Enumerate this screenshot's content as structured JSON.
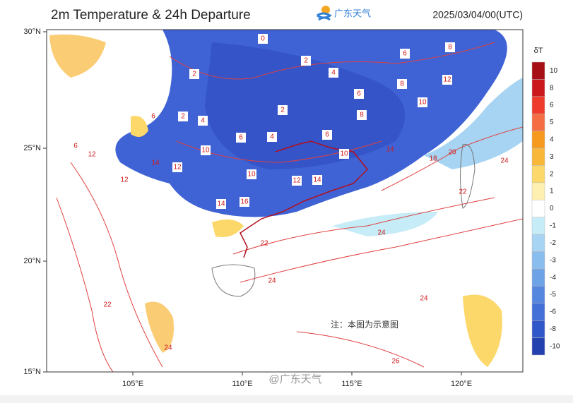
{
  "header": {
    "title": "2m Temperature & 24h Departure",
    "logo_text": "广东天气",
    "timestamp": "2025/03/04/00(UTC)"
  },
  "map": {
    "lat_labels": [
      "30°N",
      "25°N",
      "20°N",
      "15°N"
    ],
    "lon_labels": [
      "105°E",
      "110°E",
      "115°E",
      "120°E"
    ],
    "note": "注：本图为示意图",
    "watermark": "@广东天气",
    "contour_labels": [
      0,
      2,
      4,
      6,
      8,
      2,
      8,
      12,
      2,
      6,
      8,
      10,
      2,
      4,
      6,
      4,
      6,
      10,
      12,
      10,
      12,
      14,
      14,
      16,
      10,
      14,
      20,
      18,
      12,
      14,
      12,
      6,
      6,
      22,
      24,
      24,
      24,
      26,
      22,
      24,
      22,
      24
    ]
  },
  "colorbar": {
    "title": "δT",
    "levels": [
      {
        "value": 10,
        "color": "#a50f15"
      },
      {
        "value": 8,
        "color": "#cb181d"
      },
      {
        "value": 6,
        "color": "#ef3b2c"
      },
      {
        "value": 5,
        "color": "#f46d43"
      },
      {
        "value": 4,
        "color": "#f59a1e"
      },
      {
        "value": 3,
        "color": "#f8b739"
      },
      {
        "value": 2,
        "color": "#fcd86a"
      },
      {
        "value": 1,
        "color": "#fef0b0"
      },
      {
        "value": 0,
        "color": "#ffffff"
      },
      {
        "value": -1,
        "color": "#c6ecf7"
      },
      {
        "value": -2,
        "color": "#a6d4f2"
      },
      {
        "value": -3,
        "color": "#89bdee"
      },
      {
        "value": -4,
        "color": "#6ea2e6"
      },
      {
        "value": -5,
        "color": "#5687df"
      },
      {
        "value": -6,
        "color": "#4270d7"
      },
      {
        "value": -8,
        "color": "#3158c8"
      },
      {
        "value": -10,
        "color": "#2441b0"
      }
    ]
  }
}
